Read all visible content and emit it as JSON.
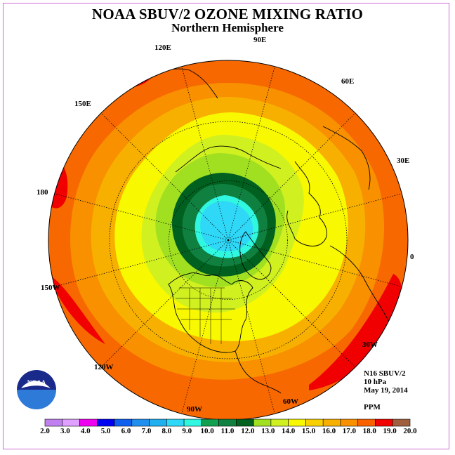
{
  "header": {
    "title": "NOAA SBUV/2 OZONE MIXING RATIO",
    "subtitle": "Northern Hemisphere"
  },
  "longitude_labels": [
    "90E",
    "60E",
    "30E",
    "0",
    "30W",
    "60W",
    "90W",
    "120W",
    "150W",
    "180",
    "150E",
    "120E"
  ],
  "info": {
    "instrument": "N16 SBUV/2",
    "level": "10 hPa",
    "date": "May 19, 2014",
    "units": "PPM"
  },
  "logo": {
    "text": "NOAA"
  },
  "colorbar": {
    "tick_labels": [
      "2.0",
      "3.0",
      "4.0",
      "5.0",
      "6.0",
      "7.0",
      "8.0",
      "9.0",
      "10.0",
      "11.0",
      "12.0",
      "13.0",
      "14.0",
      "15.0",
      "16.0",
      "17.0",
      "18.0",
      "19.0",
      "20.0"
    ],
    "colors": [
      "#c080f0",
      "#e0a0ff",
      "#f000f0",
      "#0000f0",
      "#1060f0",
      "#2090f0",
      "#20b0f0",
      "#30d8f8",
      "#30f8e0",
      "#10a050",
      "#108040",
      "#006020",
      "#a0e020",
      "#d0f020",
      "#f8f800",
      "#f8d000",
      "#f8b000",
      "#f89000",
      "#f86000",
      "#f00000",
      "#a06040"
    ]
  },
  "map": {
    "colors": {
      "outer": "#f86800",
      "band17": "#f89000",
      "band16": "#f8b000",
      "band15": "#f8f800",
      "band14": "#d0f020",
      "band13": "#a0e020",
      "band12": "#006020",
      "band11": "#108040",
      "band10": "#30f8e0",
      "band9": "#30d8f8",
      "band8": "#20b0f0",
      "max19": "#f00000",
      "coast": "#000000"
    }
  }
}
